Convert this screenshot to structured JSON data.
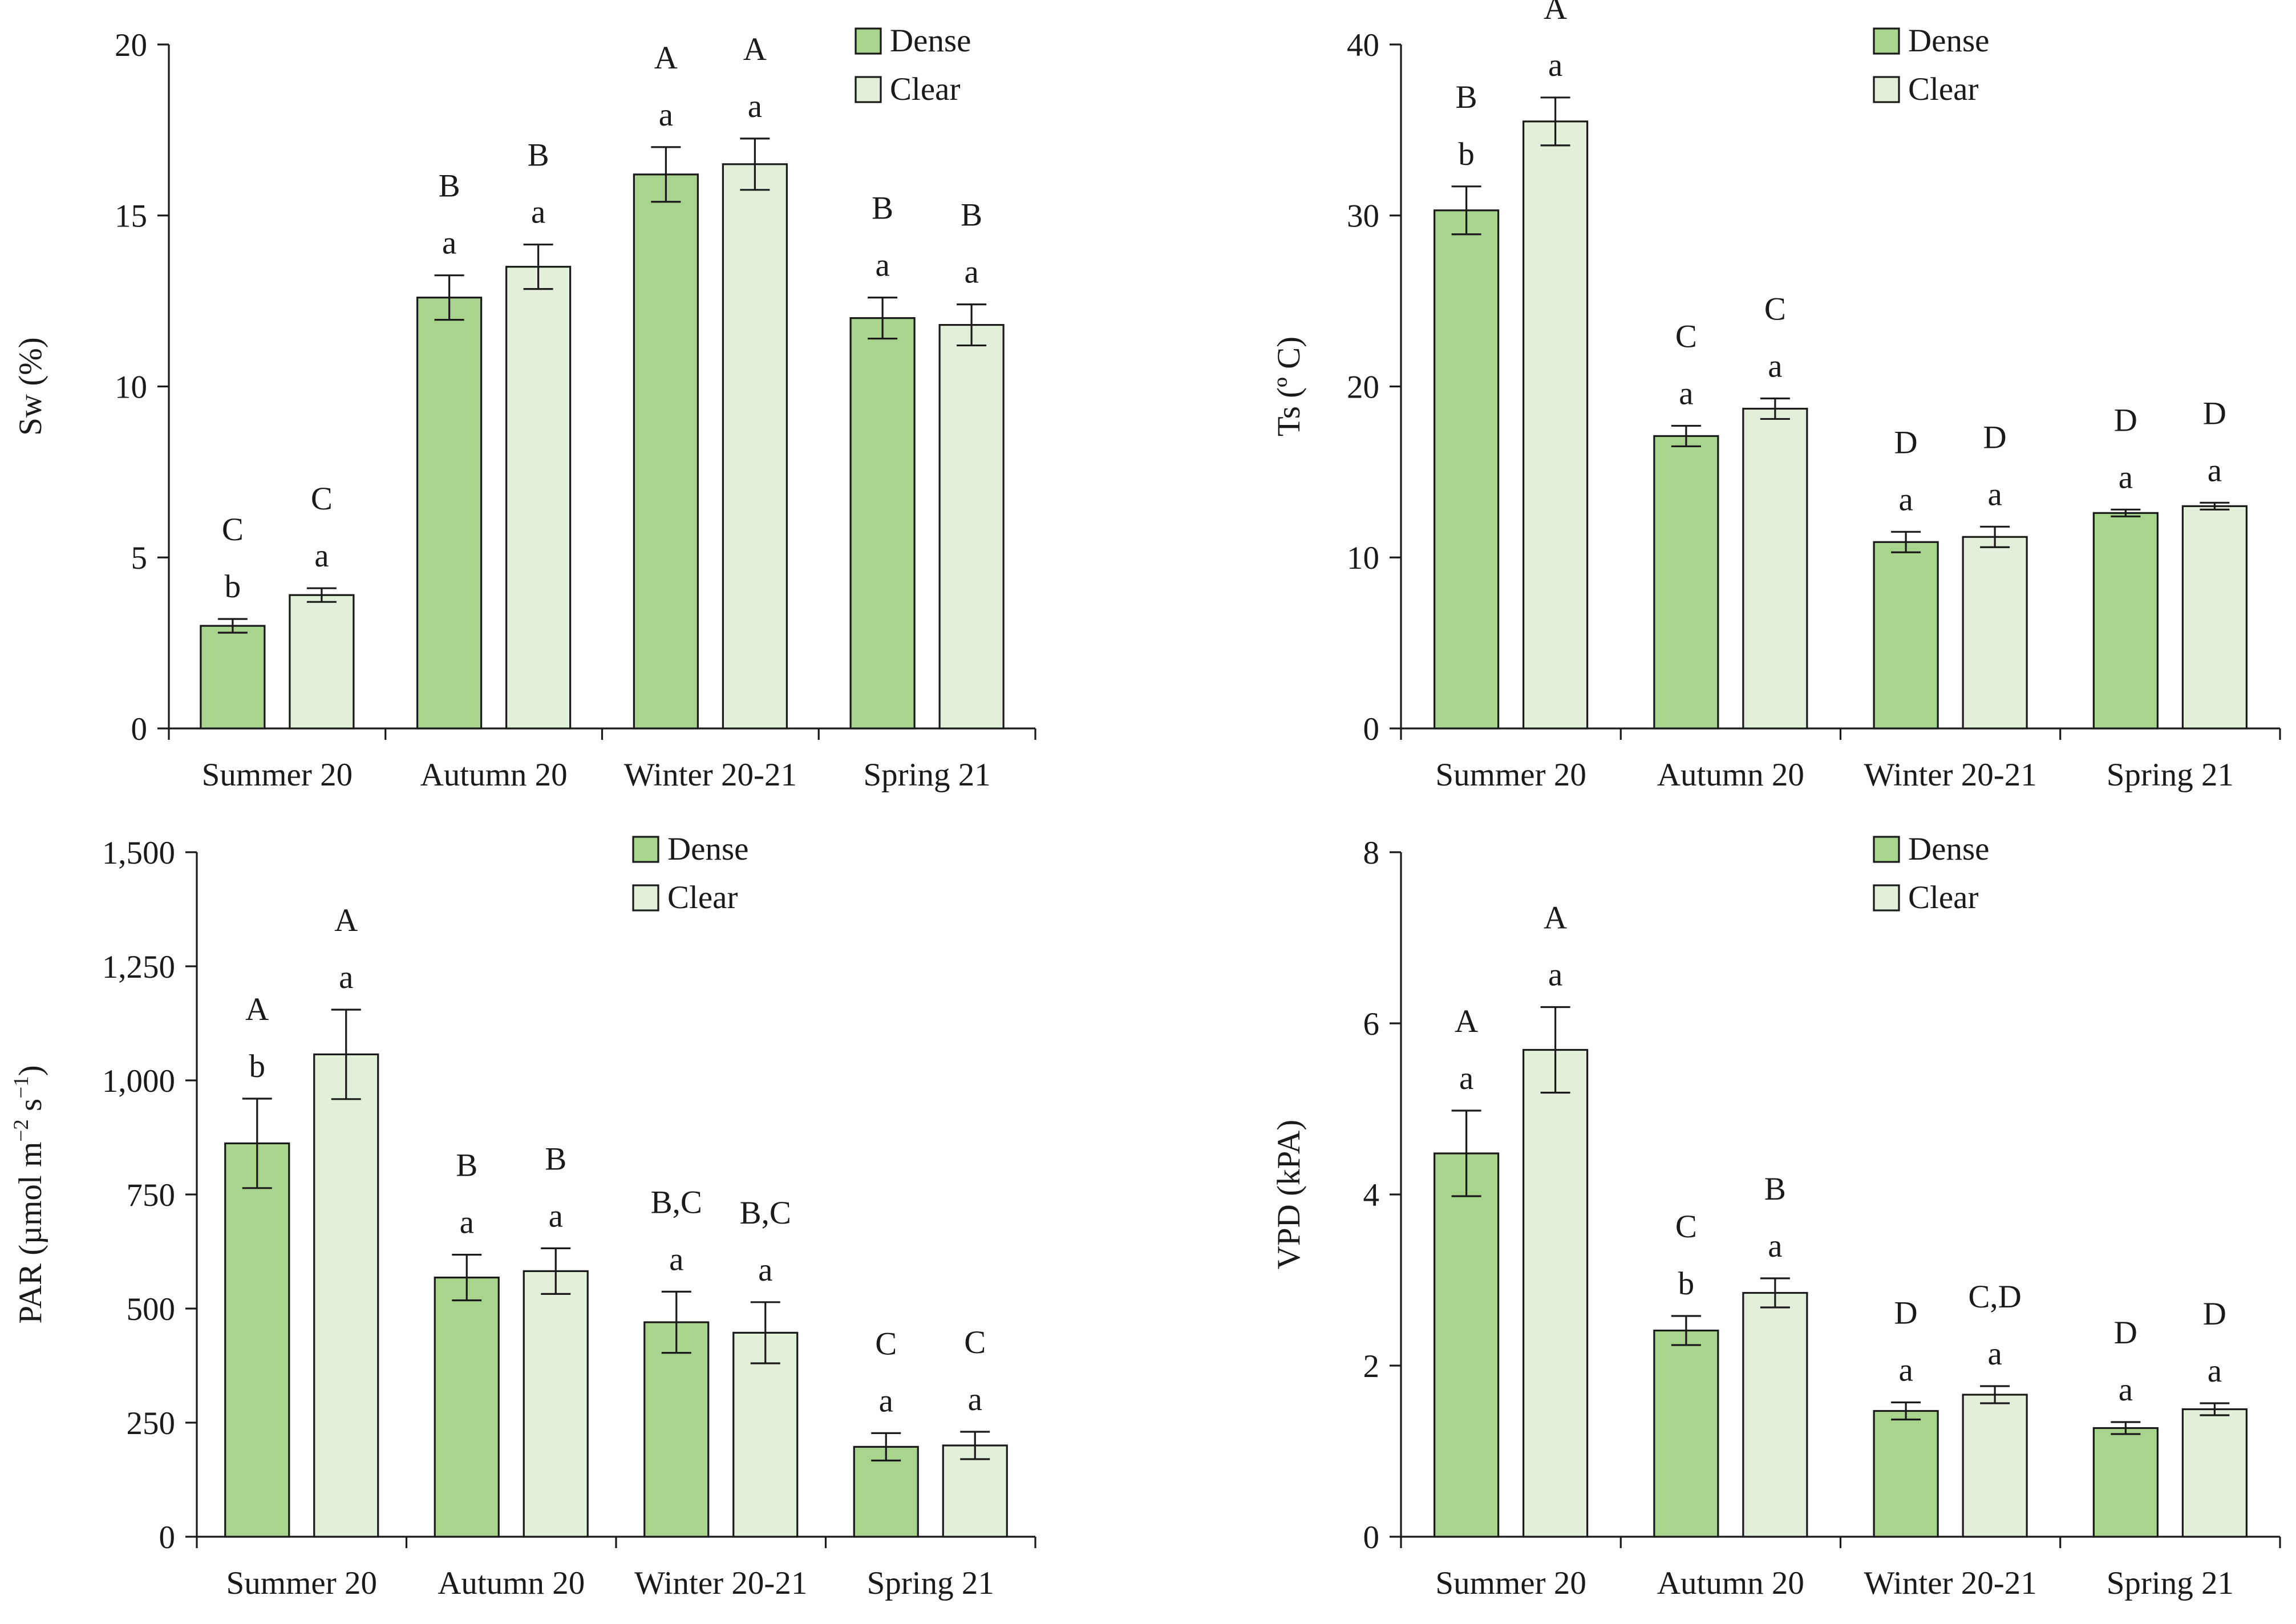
{
  "colors": {
    "dense": "#a8d48e",
    "clear": "#e3f0d9",
    "stroke": "#1a1a1a"
  },
  "chart_data": [
    {
      "id": "sw",
      "type": "bar",
      "ylabel": "Sw (%)",
      "ylim": [
        0,
        20
      ],
      "yticks": [
        0,
        5,
        10,
        15,
        20
      ],
      "ytick_labels": [
        "0",
        "5",
        "10",
        "15",
        "20"
      ],
      "categories": [
        "Summer 20",
        "Autumn 20",
        "Winter 20-21",
        "Spring 21"
      ],
      "legend": [
        "Dense",
        "Clear"
      ],
      "series": [
        {
          "name": "Dense",
          "values": [
            3.0,
            12.6,
            16.2,
            12.0
          ],
          "errors": [
            0.2,
            0.65,
            0.8,
            0.6
          ],
          "lower_letters": [
            "b",
            "a",
            "a",
            "a"
          ],
          "upper_letters": [
            "C",
            "B",
            "A",
            "B"
          ]
        },
        {
          "name": "Clear",
          "values": [
            3.9,
            13.5,
            16.5,
            11.8
          ],
          "errors": [
            0.2,
            0.65,
            0.75,
            0.6
          ],
          "lower_letters": [
            "a",
            "a",
            "a",
            "a"
          ],
          "upper_letters": [
            "C",
            "B",
            "A",
            "B"
          ]
        }
      ]
    },
    {
      "id": "ts",
      "type": "bar",
      "ylabel": "Ts (º C)",
      "ylim": [
        0,
        40
      ],
      "yticks": [
        0,
        10,
        20,
        30,
        40
      ],
      "ytick_labels": [
        "0",
        "10",
        "20",
        "30",
        "40"
      ],
      "categories": [
        "Summer 20",
        "Autumn 20",
        "Winter 20-21",
        "Spring 21"
      ],
      "legend": [
        "Dense",
        "Clear"
      ],
      "series": [
        {
          "name": "Dense",
          "values": [
            30.3,
            17.1,
            10.9,
            12.6
          ],
          "errors": [
            1.4,
            0.6,
            0.6,
            0.2
          ],
          "lower_letters": [
            "b",
            "a",
            "a",
            "a"
          ],
          "upper_letters": [
            "B",
            "C",
            "D",
            "D"
          ]
        },
        {
          "name": "Clear",
          "values": [
            35.5,
            18.7,
            11.2,
            13.0
          ],
          "errors": [
            1.4,
            0.6,
            0.6,
            0.2
          ],
          "lower_letters": [
            "a",
            "a",
            "a",
            "a"
          ],
          "upper_letters": [
            "A",
            "C",
            "D",
            "D"
          ]
        }
      ]
    },
    {
      "id": "par",
      "type": "bar",
      "ylabel_prefix": "PAR (µmol m",
      "ylabel_sup1": "−2",
      "ylabel_mid": " s",
      "ylabel_sup2": "−1",
      "ylabel_suffix": ")",
      "ylim": [
        0,
        1500
      ],
      "yticks": [
        0,
        250,
        500,
        750,
        1000,
        1250,
        1500
      ],
      "ytick_labels": [
        "0",
        "250",
        "500",
        "750",
        "1,000",
        "1,250",
        "1,500"
      ],
      "categories": [
        "Summer 20",
        "Autumn 20",
        "Winter 20-21",
        "Spring 21"
      ],
      "legend": [
        "Dense",
        "Clear"
      ],
      "series": [
        {
          "name": "Dense",
          "values": [
            862,
            568,
            470,
            197
          ],
          "errors": [
            98,
            50,
            67,
            30
          ],
          "lower_letters": [
            "b",
            "a",
            "a",
            "a"
          ],
          "upper_letters": [
            "A",
            "B",
            "B,C",
            "C"
          ]
        },
        {
          "name": "Clear",
          "values": [
            1057,
            582,
            447,
            200
          ],
          "errors": [
            98,
            50,
            67,
            30
          ],
          "lower_letters": [
            "a",
            "a",
            "a",
            "a"
          ],
          "upper_letters": [
            "A",
            "B",
            "B,C",
            "C"
          ]
        }
      ]
    },
    {
      "id": "vpd",
      "type": "bar",
      "ylabel": "VPD (kPA)",
      "ylim": [
        0,
        8
      ],
      "yticks": [
        0,
        2,
        4,
        6,
        8
      ],
      "ytick_labels": [
        "0",
        "2",
        "4",
        "6",
        "8"
      ],
      "categories": [
        "Summer 20",
        "Autumn 20",
        "Winter 20-21",
        "Spring 21"
      ],
      "legend": [
        "Dense",
        "Clear"
      ],
      "series": [
        {
          "name": "Dense",
          "values": [
            4.48,
            2.41,
            1.47,
            1.27
          ],
          "errors": [
            0.5,
            0.17,
            0.1,
            0.07
          ],
          "lower_letters": [
            "a",
            "b",
            "a",
            "a"
          ],
          "upper_letters": [
            "A",
            "C",
            "D",
            "D"
          ]
        },
        {
          "name": "Clear",
          "values": [
            5.69,
            2.85,
            1.66,
            1.49
          ],
          "errors": [
            0.5,
            0.17,
            0.1,
            0.07
          ],
          "lower_letters": [
            "a",
            "a",
            "a",
            "a"
          ],
          "upper_letters": [
            "A",
            "B",
            "C,D",
            "D"
          ]
        }
      ]
    }
  ]
}
